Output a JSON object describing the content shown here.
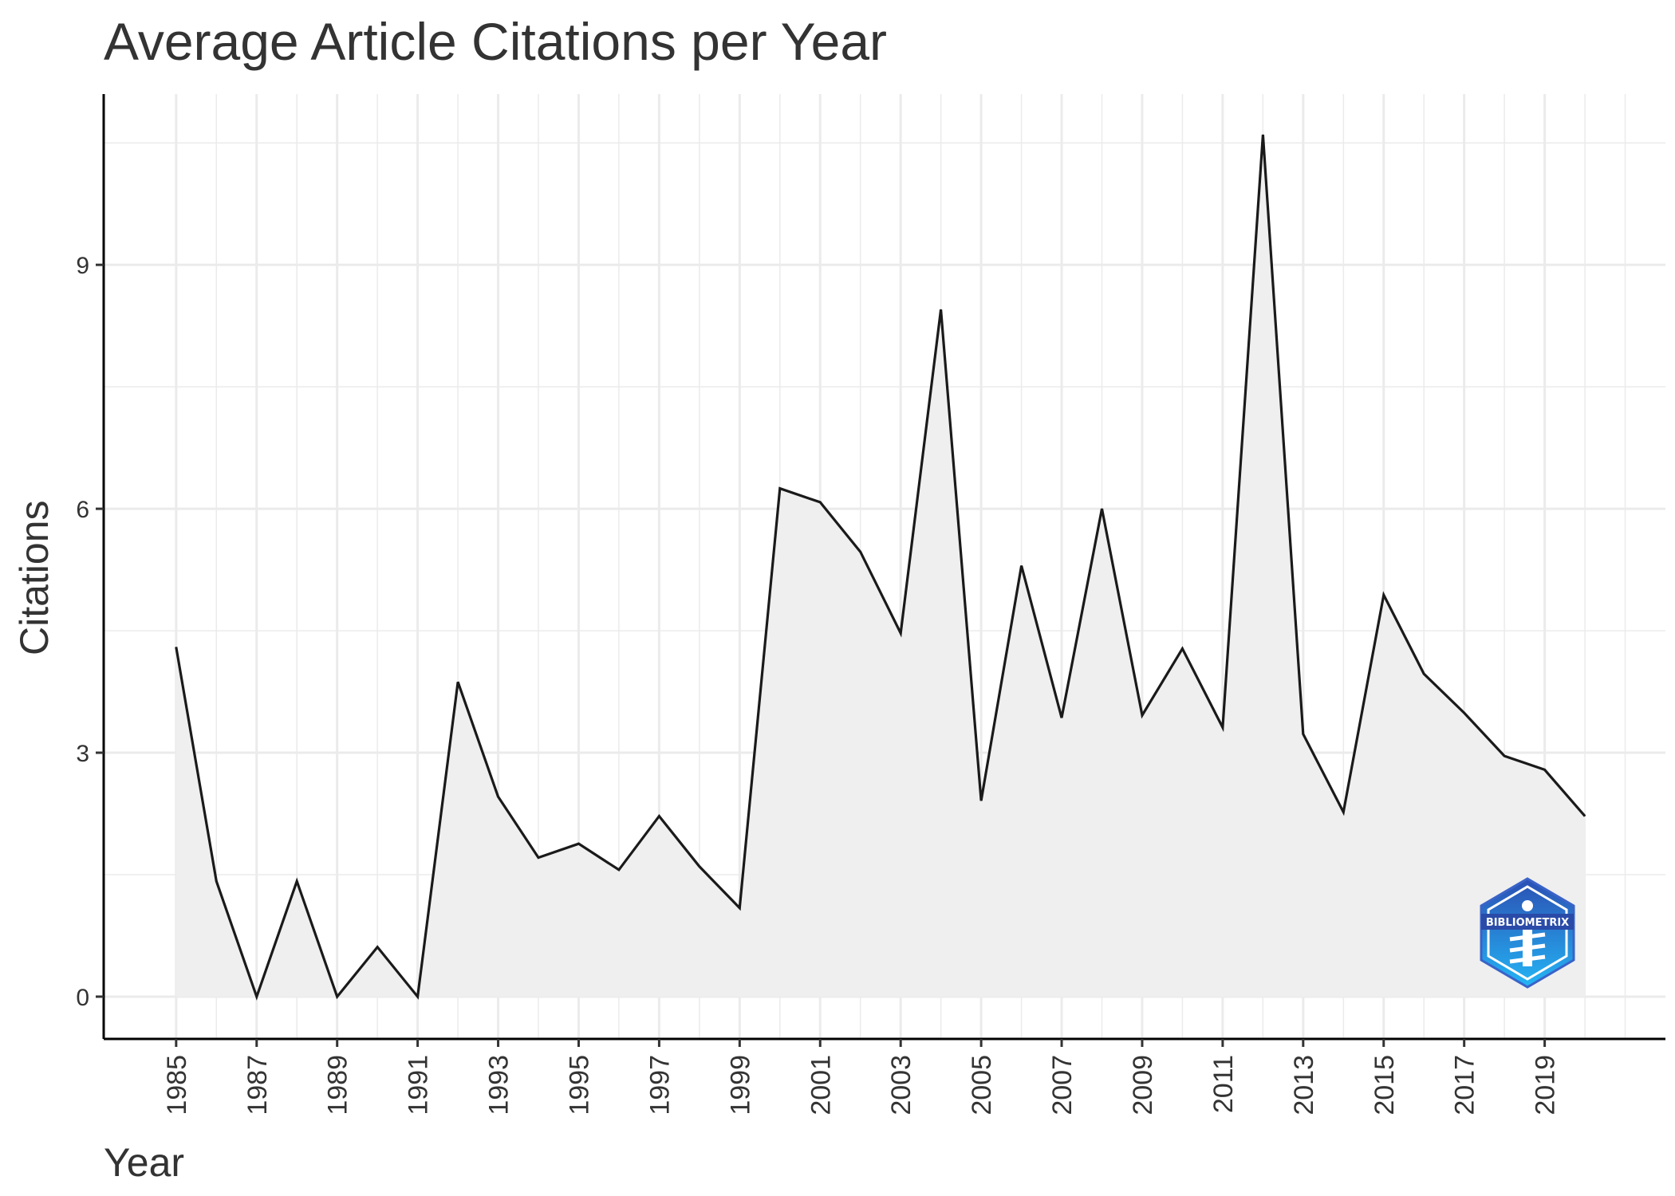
{
  "chart_data": {
    "type": "area",
    "title": "Average Article Citations per Year",
    "xlabel": "Year",
    "ylabel": "Citations",
    "x": [
      1985,
      1986,
      1987,
      1988,
      1989,
      1990,
      1991,
      1992,
      1993,
      1994,
      1995,
      1996,
      1997,
      1998,
      1999,
      2000,
      2001,
      2002,
      2003,
      2004,
      2005,
      2006,
      2007,
      2008,
      2009,
      2010,
      2011,
      2012,
      2013,
      2014,
      2015,
      2016,
      2017,
      2018,
      2019,
      2020
    ],
    "values": [
      4.3,
      1.42,
      0,
      1.42,
      0,
      0.61,
      0,
      3.87,
      2.46,
      1.71,
      1.88,
      1.56,
      2.22,
      1.6,
      1.09,
      6.25,
      6.08,
      5.47,
      4.47,
      8.45,
      2.41,
      5.3,
      3.43,
      6.0,
      3.46,
      4.28,
      3.31,
      10.6,
      3.23,
      2.27,
      4.94,
      3.97,
      3.49,
      2.96,
      2.79,
      2.22
    ],
    "xlim": [
      1983.2,
      2022.0
    ],
    "ylim": [
      -0.52,
      11.1
    ],
    "yticks": [
      0,
      3,
      6,
      9
    ],
    "xticks": [
      1985,
      1987,
      1989,
      1991,
      1993,
      1995,
      1997,
      1999,
      2001,
      2003,
      2005,
      2007,
      2009,
      2011,
      2013,
      2015,
      2017,
      2019
    ],
    "grid": true,
    "line_color": "#1a1a1a",
    "fill_color": "#efefef",
    "grid_color": "#ebebeb",
    "legend": "none"
  },
  "logo": {
    "text": "BIBLIOMETRIX",
    "icon": "bibliometrix-logo-icon"
  }
}
